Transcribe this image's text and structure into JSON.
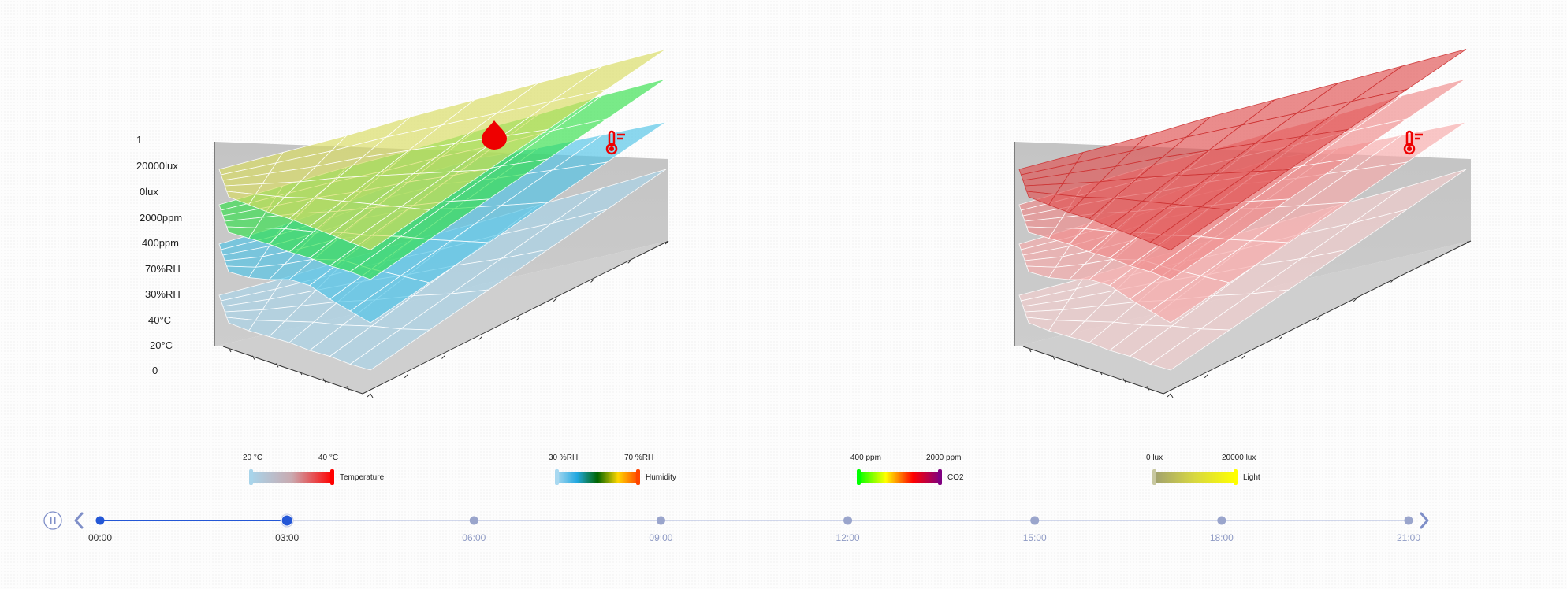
{
  "chart_data": [
    {
      "type": "surface3d",
      "name": "left",
      "y_axis_labels": [
        "1",
        "20000lux",
        "0lux",
        "2000ppm",
        "400ppm",
        "70%RH",
        "30%RH",
        "40°C",
        "20°C",
        "0"
      ],
      "layers": [
        {
          "name": "Temperature",
          "color": "#a8d4ea",
          "values": [
            0.1,
            0.1,
            0.11,
            0.12,
            0.12,
            0.13,
            0.13,
            0.14
          ]
        },
        {
          "name": "Humidity",
          "color": "#4fc3e6",
          "values": [
            0.36,
            0.37,
            0.4,
            0.44,
            0.45,
            0.42,
            0.4,
            0.38
          ]
        },
        {
          "name": "CO2",
          "color": "#33e04a",
          "values": [
            0.56,
            0.57,
            0.58,
            0.58,
            0.59,
            0.59,
            0.6,
            0.6
          ]
        },
        {
          "name": "Light",
          "color": "#d8dc60",
          "values": [
            0.74,
            0.74,
            0.74,
            0.75,
            0.75,
            0.75,
            0.75,
            0.75
          ]
        }
      ],
      "icons": [
        "drop-icon",
        "thermometer-icon"
      ]
    },
    {
      "type": "surface3d",
      "name": "right",
      "layers": [
        {
          "name": "Temperature",
          "color": "#f2cccc",
          "values": [
            0.1,
            0.1,
            0.11,
            0.12,
            0.12,
            0.13,
            0.13,
            0.14
          ]
        },
        {
          "name": "Humidity",
          "color": "#f7a9a9",
          "values": [
            0.36,
            0.37,
            0.4,
            0.44,
            0.45,
            0.42,
            0.4,
            0.38
          ]
        },
        {
          "name": "CO2",
          "color": "#f08a8a",
          "values": [
            0.56,
            0.57,
            0.58,
            0.58,
            0.59,
            0.59,
            0.6,
            0.6
          ]
        },
        {
          "name": "Light",
          "color": "#e05050",
          "values": [
            0.74,
            0.74,
            0.74,
            0.75,
            0.75,
            0.75,
            0.75,
            0.75
          ]
        }
      ],
      "icons": [
        "thermometer-icon"
      ]
    }
  ],
  "legends": [
    {
      "name": "Temperature",
      "min": "20 °C",
      "max": "40 °C",
      "colors": [
        "#a8d4ea",
        "#c9aab0",
        "#ff0000"
      ],
      "min_color": "#a8d4ea",
      "max_color": "#ff0000"
    },
    {
      "name": "Humidity",
      "min": "30 %RH",
      "max": "70 %RH",
      "colors": [
        "#a8d8f0",
        "#22a8e0",
        "#006400",
        "#ffd700",
        "#ff4500"
      ],
      "min_color": "#a8d8f0",
      "max_color": "#ff4500"
    },
    {
      "name": "CO2",
      "min": "400 ppm",
      "max": "2000 ppm",
      "colors": [
        "#00ff00",
        "#ffff00",
        "#ff0000",
        "#800080"
      ],
      "min_color": "#00ff00",
      "max_color": "#800080"
    },
    {
      "name": "Light",
      "min": "0 lux",
      "max": "20000 lux",
      "colors": [
        "#a0a070",
        "#d8d840",
        "#ffff00"
      ],
      "min_color": "#c8c8a0",
      "max_color": "#ffff00"
    }
  ],
  "timeline": {
    "labels": [
      "00:00",
      "03:00",
      "06:00",
      "09:00",
      "12:00",
      "15:00",
      "18:00",
      "21:00"
    ],
    "current": 1,
    "accent": "#2457d6",
    "inactive": "#9aa5cc"
  }
}
